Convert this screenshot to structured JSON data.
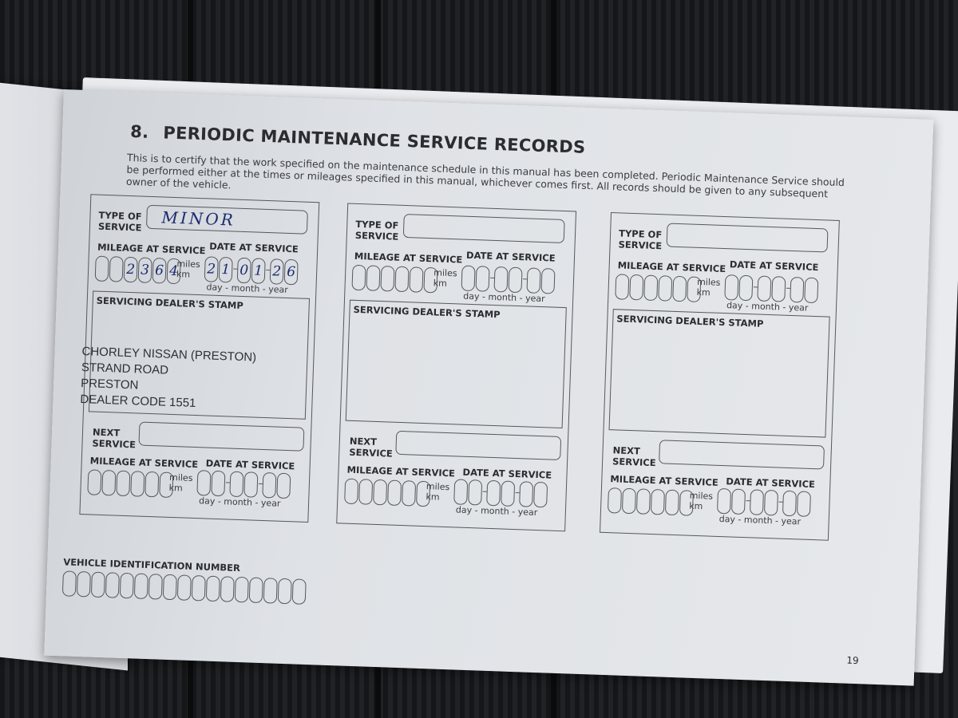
{
  "page": {
    "section_number": "8.",
    "title": "PERIODIC MAINTENANCE SERVICE RECORDS",
    "intro": "This is to certify that the work specified on the maintenance schedule in this manual has been completed. Periodic Maintenance Service should be performed either at the times or mileages specified in this manual, whichever comes first. All records should be given to any subsequent owner of the vehicle.",
    "page_number": "19"
  },
  "labels": {
    "type_of": "TYPE OF",
    "service": "SERVICE",
    "mileage": "MILEAGE AT SERVICE",
    "date": "DATE AT SERVICE",
    "miles": "miles",
    "km": "km",
    "dmy": "day - month - year",
    "stamp": "SERVICING DEALER'S STAMP",
    "next": "NEXT",
    "vin": "VEHICLE IDENTIFICATION NUMBER"
  },
  "records": [
    {
      "type": "MINOR",
      "mileage": [
        "",
        "",
        "2",
        "3",
        "6",
        "4"
      ],
      "date": [
        "2",
        "1",
        "0",
        "1",
        "2",
        "6"
      ],
      "stamp": [
        "CHORLEY NISSAN (PRESTON)",
        "STRAND ROAD",
        "PRESTON",
        "DEALER CODE 1551"
      ]
    },
    {
      "type": "",
      "mileage": [
        "",
        "",
        "",
        "",
        "",
        ""
      ],
      "date": [
        "",
        "",
        "",
        "",
        "",
        ""
      ],
      "stamp": []
    },
    {
      "type": "",
      "mileage": [
        "",
        "",
        "",
        "",
        "",
        ""
      ],
      "date": [
        "",
        "",
        "",
        "",
        "",
        ""
      ],
      "stamp": []
    }
  ]
}
